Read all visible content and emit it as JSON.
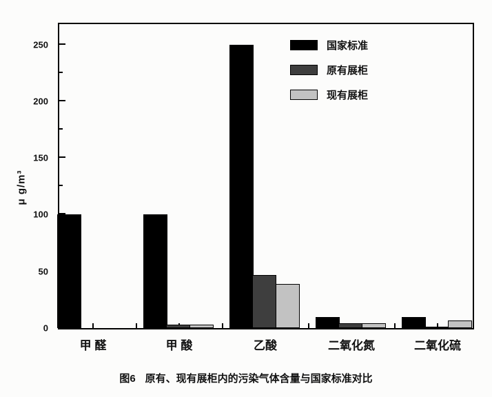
{
  "chart_data": {
    "type": "bar",
    "title": "",
    "xlabel": "",
    "ylabel": "μ g/m³",
    "ylim": [
      0,
      268
    ],
    "yticks_major": [
      0,
      50,
      100,
      150,
      200,
      250
    ],
    "yticks_minor": [
      25,
      75,
      125,
      175,
      225
    ],
    "grid": false,
    "legend_position": "top-right-inside",
    "categories": [
      "甲 醛",
      "甲 酸",
      "乙酸",
      "二氧化氮",
      "二氧化硫"
    ],
    "series": [
      {
        "name": "国家标准",
        "color": "#000000",
        "values": [
          100,
          100,
          250,
          10,
          10
        ]
      },
      {
        "name": "原有展柜",
        "color": "#3e3e3e",
        "values": [
          0,
          3,
          47,
          4,
          1
        ]
      },
      {
        "name": "现有展柜",
        "color": "#c2c2c2",
        "values": [
          0,
          3,
          39,
          4,
          7
        ]
      }
    ]
  },
  "figure": {
    "caption_prefix": "图6",
    "caption_text": "原有、现有展柜内的污染气体含量与国家标准对比"
  }
}
